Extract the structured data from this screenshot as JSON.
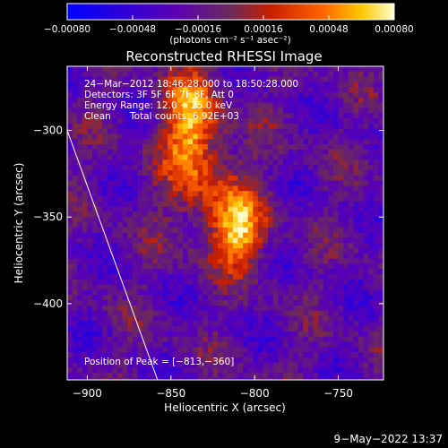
{
  "chart_data": {
    "type": "heatmap",
    "title": "Reconstructed RHESSI Image",
    "xlabel": "Heliocentric X (arcsec)",
    "ylabel": "Heliocentric Y (arcsec)",
    "xlim": [
      -912,
      -723
    ],
    "ylim": [
      -444,
      -263
    ],
    "x_ticks": [
      -900,
      -850,
      -800,
      -750
    ],
    "y_ticks": [
      -300,
      -350,
      -400
    ],
    "x_tick_labels": [
      "−900",
      "−850",
      "−800",
      "−750"
    ],
    "y_tick_labels": [
      "−300",
      "−350",
      "−400"
    ],
    "colorbar": {
      "range": [
        -0.0008,
        0.0008
      ],
      "ticks": [
        -0.0008,
        -0.00048,
        -0.00016,
        0.00016,
        0.00048,
        0.0008
      ],
      "tick_labels": [
        "−0.00080",
        "−0.00048",
        "−0.00016",
        "0.00016",
        "0.00048",
        "0.00080"
      ],
      "label": "(photons cm⁻² s⁻¹ asec⁻²)"
    },
    "annotations": {
      "time": "24−Mar−2012 18:46:28.000 to 18:50:28.000",
      "detectors": "Detectors: 3F 5F 6F 7F 8F, Att 0",
      "energy": "Energy Range: 12.0 − 25.0 keV",
      "clean": "Clean",
      "counts": "Total counts: 6.92E+03",
      "peak": "Position of Peak = [−813,−360]"
    },
    "peak": {
      "x": -813,
      "y": -360
    },
    "sources": [
      {
        "x": -840,
        "y": -293,
        "peak": 0.00075
      },
      {
        "x": -812,
        "y": -357,
        "peak": 0.0008
      },
      {
        "x": -830,
        "y": -330,
        "peak": 0.00035
      }
    ],
    "limb_line": [
      {
        "x": -912,
        "y": -300
      },
      {
        "x": -858,
        "y": -444
      }
    ],
    "footer": "9−May−2022 13:37",
    "colors": {
      "background": "#000000",
      "text": "#ffffff"
    }
  }
}
